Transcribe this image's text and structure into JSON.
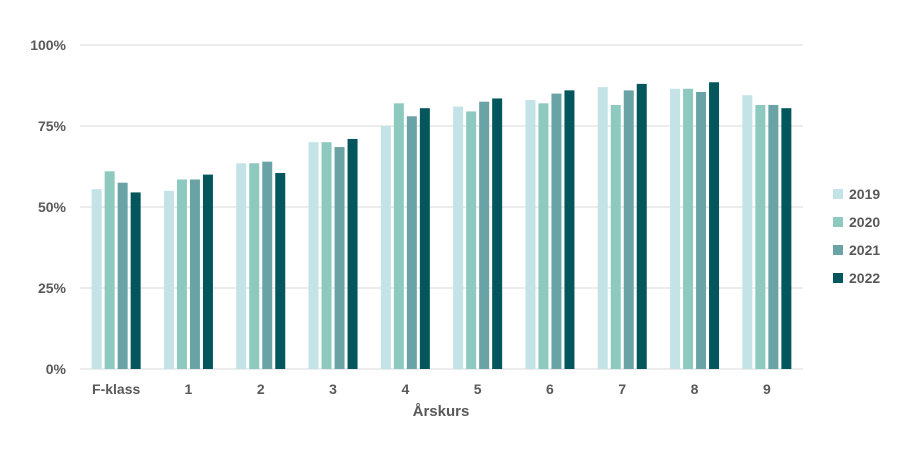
{
  "chart_data": {
    "type": "bar",
    "title": "",
    "xlabel": "Årskurs",
    "ylabel": "",
    "ylim": [
      0,
      100
    ],
    "yticks": [
      "0%",
      "25%",
      "50%",
      "75%",
      "100%"
    ],
    "ytick_values": [
      0,
      25,
      50,
      75,
      100
    ],
    "grid": true,
    "legend_position": "right",
    "categories": [
      "F-klass",
      "1",
      "2",
      "3",
      "4",
      "5",
      "6",
      "7",
      "8",
      "9"
    ],
    "series": [
      {
        "name": "2019",
        "color": "#c3e3e7",
        "values": [
          55.5,
          55,
          63.5,
          70,
          75,
          81,
          83,
          87,
          86.5,
          84.5
        ]
      },
      {
        "name": "2020",
        "color": "#8ec9c0",
        "values": [
          61,
          58.5,
          63.5,
          70,
          82,
          79.5,
          82,
          81.5,
          86.5,
          81.5
        ]
      },
      {
        "name": "2021",
        "color": "#6aa3a6",
        "values": [
          57.5,
          58.5,
          64,
          68.5,
          78,
          82.5,
          85,
          86,
          85.5,
          81.5
        ]
      },
      {
        "name": "2022",
        "color": "#03575c",
        "values": [
          54.5,
          60,
          60.5,
          71,
          80.5,
          83.5,
          86,
          88,
          88.5,
          80.5
        ]
      }
    ]
  }
}
